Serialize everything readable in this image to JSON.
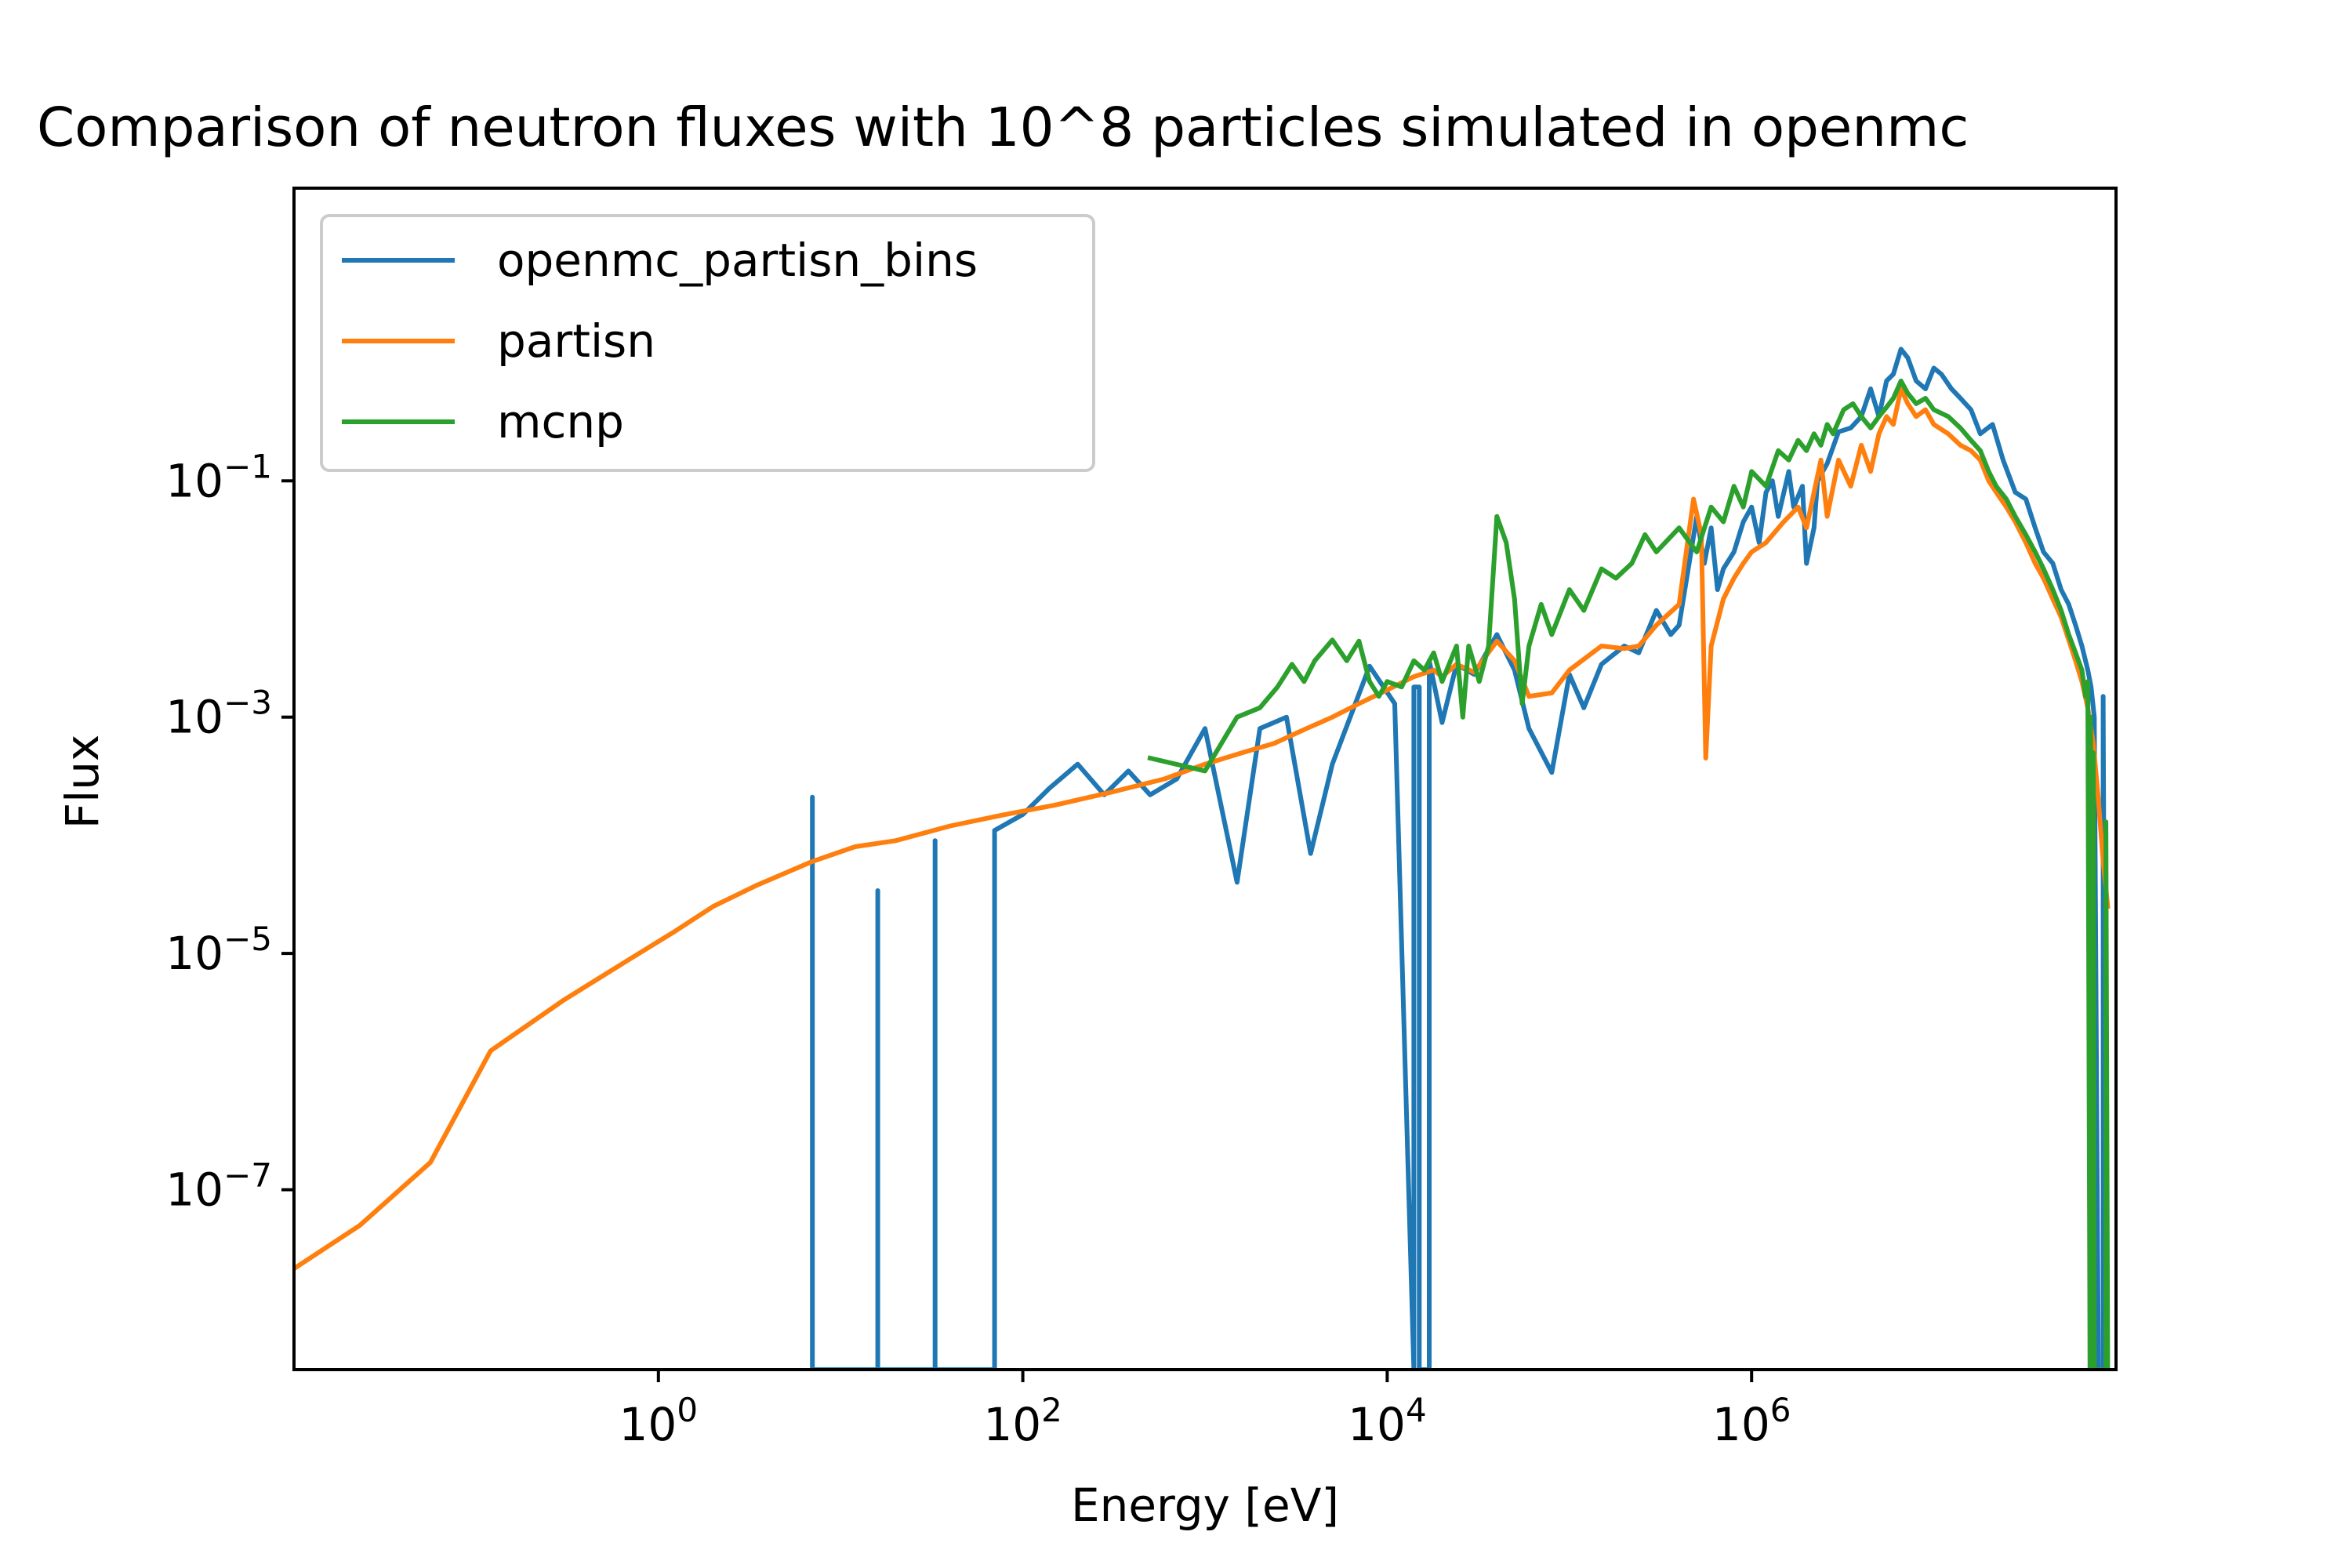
{
  "chart_data": {
    "type": "line",
    "title": "Comparison of neutron fluxes with 10^8 particles simulated in openmc",
    "xlabel": "Energy [eV]",
    "ylabel": "Flux",
    "x_scale": "log",
    "y_scale": "log",
    "xlim": [
      0.01,
      100000000
    ],
    "ylim": [
      3e-09,
      30
    ],
    "grid": false,
    "legend_position": "top-left",
    "x_ticks": [
      {
        "value": 1,
        "base": "10",
        "exp": "0"
      },
      {
        "value": 100,
        "base": "10",
        "exp": "2"
      },
      {
        "value": 10000,
        "base": "10",
        "exp": "4"
      },
      {
        "value": 1000000,
        "base": "10",
        "exp": "6"
      }
    ],
    "y_ticks": [
      {
        "value": 0.1,
        "base": "10",
        "exp": "−1"
      },
      {
        "value": 0.001,
        "base": "10",
        "exp": "−3"
      },
      {
        "value": 1e-05,
        "base": "10",
        "exp": "−5"
      },
      {
        "value": 1e-07,
        "base": "10",
        "exp": "−7"
      }
    ],
    "series": [
      {
        "name": "openmc_partisn_bins",
        "color": "#1f77b4",
        "points": [
          [
            7,
            3e-09
          ],
          [
            7,
            0.00021
          ],
          [
            7,
            3e-09
          ],
          [
            16,
            3e-09
          ],
          [
            16,
            3.4e-05
          ],
          [
            16,
            3e-09
          ],
          [
            33,
            3e-09
          ],
          [
            33,
            9e-05
          ],
          [
            33,
            3e-09
          ],
          [
            70,
            3e-09
          ],
          [
            70,
            0.00011
          ],
          [
            100,
            0.00015
          ],
          [
            140,
            0.00025
          ],
          [
            200,
            0.0004
          ],
          [
            280,
            0.00022
          ],
          [
            380,
            0.00035
          ],
          [
            500,
            0.00022
          ],
          [
            700,
            0.0003
          ],
          [
            1000,
            0.0008
          ],
          [
            1500,
            4e-05
          ],
          [
            2000,
            0.0008
          ],
          [
            2800,
            0.001
          ],
          [
            3800,
            7e-05
          ],
          [
            5000,
            0.0004
          ],
          [
            8000,
            0.0027
          ],
          [
            11000,
            0.0013
          ],
          [
            14000,
            3e-09
          ],
          [
            14000,
            0.0018
          ],
          [
            15000,
            0.0018
          ],
          [
            15000,
            3e-09
          ],
          [
            17000,
            3e-09
          ],
          [
            17000,
            0.003
          ],
          [
            20000,
            0.0009
          ],
          [
            24000,
            0.0028
          ],
          [
            30000,
            0.0023
          ],
          [
            40000,
            0.005
          ],
          [
            50000,
            0.0025
          ],
          [
            60000,
            0.0008
          ],
          [
            80000,
            0.00034
          ],
          [
            100000,
            0.0023
          ],
          [
            120000,
            0.0012
          ],
          [
            150000,
            0.0028
          ],
          [
            200000,
            0.004
          ],
          [
            240000,
            0.0035
          ],
          [
            300000,
            0.008
          ],
          [
            360000,
            0.005
          ],
          [
            400000,
            0.006
          ],
          [
            500000,
            0.05
          ],
          [
            550000,
            0.02
          ],
          [
            600000,
            0.04
          ],
          [
            650000,
            0.012
          ],
          [
            700000,
            0.018
          ],
          [
            800000,
            0.025
          ],
          [
            900000,
            0.045
          ],
          [
            1000000,
            0.06
          ],
          [
            1100000,
            0.03
          ],
          [
            1200000,
            0.08
          ],
          [
            1300000,
            0.1
          ],
          [
            1400000,
            0.05
          ],
          [
            1600000,
            0.12
          ],
          [
            1700000,
            0.06
          ],
          [
            1900000,
            0.09
          ],
          [
            2000000,
            0.02
          ],
          [
            2200000,
            0.04
          ],
          [
            2300000,
            0.1
          ],
          [
            2600000,
            0.14
          ],
          [
            3000000,
            0.26
          ],
          [
            3500000,
            0.28
          ],
          [
            4000000,
            0.35
          ],
          [
            4500000,
            0.6
          ],
          [
            5000000,
            0.35
          ],
          [
            5500000,
            0.7
          ],
          [
            6000000,
            0.8
          ],
          [
            6600000,
            1.3
          ],
          [
            7200000,
            1.1
          ],
          [
            8000000,
            0.7
          ],
          [
            9000000,
            0.6
          ],
          [
            10000000,
            0.9
          ],
          [
            11000000,
            0.8
          ],
          [
            12500000,
            0.6
          ],
          [
            14000000,
            0.5
          ],
          [
            16000000,
            0.4
          ],
          [
            18000000,
            0.25
          ],
          [
            21000000,
            0.3
          ],
          [
            24000000,
            0.15
          ],
          [
            28000000,
            0.08
          ],
          [
            32000000,
            0.07
          ],
          [
            36000000,
            0.04
          ],
          [
            40000000,
            0.025
          ],
          [
            45000000,
            0.02
          ],
          [
            50000000,
            0.012
          ],
          [
            55000000,
            0.009
          ],
          [
            60000000,
            0.006
          ],
          [
            65000000,
            0.004
          ],
          [
            70000000,
            0.0025
          ],
          [
            73000000,
            0.0018
          ],
          [
            76000000,
            0.001
          ],
          [
            80000000,
            3e-09
          ],
          [
            85000000,
            3e-09
          ],
          [
            85000000,
            0.0015
          ],
          [
            88000000,
            3e-09
          ]
        ]
      },
      {
        "name": "partisn",
        "color": "#ff7f0e",
        "points": [
          [
            0.0047,
            1e-08
          ],
          [
            0.023,
            5e-08
          ],
          [
            0.056,
            1.7e-07
          ],
          [
            0.12,
            1.5e-06
          ],
          [
            0.3,
            4e-06
          ],
          [
            0.7,
            9e-06
          ],
          [
            1.2,
            1.5e-05
          ],
          [
            2,
            2.5e-05
          ],
          [
            3.5,
            3.8e-05
          ],
          [
            7,
            6e-05
          ],
          [
            12,
            8e-05
          ],
          [
            20,
            9e-05
          ],
          [
            40,
            0.00012
          ],
          [
            80,
            0.00015
          ],
          [
            150,
            0.00018
          ],
          [
            300,
            0.00023
          ],
          [
            600,
            0.0003
          ],
          [
            1000,
            0.0004
          ],
          [
            1600,
            0.0005
          ],
          [
            2400,
            0.0006
          ],
          [
            3600,
            0.0008
          ],
          [
            5000,
            0.001
          ],
          [
            7000,
            0.0013
          ],
          [
            10000,
            0.0017
          ],
          [
            14000,
            0.0022
          ],
          [
            18000,
            0.0025
          ],
          [
            20000,
            0.0022
          ],
          [
            24000,
            0.0028
          ],
          [
            30000,
            0.0024
          ],
          [
            40000,
            0.0044
          ],
          [
            50000,
            0.003
          ],
          [
            60000,
            0.0015
          ],
          [
            80000,
            0.0016
          ],
          [
            100000,
            0.0025
          ],
          [
            150000,
            0.004
          ],
          [
            200000,
            0.0038
          ],
          [
            240000,
            0.004
          ],
          [
            300000,
            0.006
          ],
          [
            400000,
            0.009
          ],
          [
            480000,
            0.07
          ],
          [
            530000,
            0.035
          ],
          [
            560000,
            0.00045
          ],
          [
            600000,
            0.004
          ],
          [
            700000,
            0.01
          ],
          [
            800000,
            0.015
          ],
          [
            900000,
            0.02
          ],
          [
            1000000,
            0.025
          ],
          [
            1200000,
            0.03
          ],
          [
            1500000,
            0.045
          ],
          [
            1800000,
            0.06
          ],
          [
            2000000,
            0.04
          ],
          [
            2400000,
            0.15
          ],
          [
            2600000,
            0.05
          ],
          [
            3000000,
            0.15
          ],
          [
            3500000,
            0.09
          ],
          [
            4000000,
            0.2
          ],
          [
            4500000,
            0.12
          ],
          [
            5000000,
            0.25
          ],
          [
            5500000,
            0.35
          ],
          [
            6000000,
            0.3
          ],
          [
            6600000,
            0.6
          ],
          [
            7200000,
            0.45
          ],
          [
            8000000,
            0.35
          ],
          [
            9000000,
            0.4
          ],
          [
            10000000,
            0.3
          ],
          [
            12000000,
            0.25
          ],
          [
            14000000,
            0.2
          ],
          [
            16000000,
            0.18
          ],
          [
            18000000,
            0.15
          ],
          [
            20000000,
            0.1
          ],
          [
            22000000,
            0.08
          ],
          [
            25000000,
            0.06
          ],
          [
            28000000,
            0.045
          ],
          [
            32000000,
            0.03
          ],
          [
            36000000,
            0.02
          ],
          [
            40000000,
            0.015
          ],
          [
            45000000,
            0.01
          ],
          [
            50000000,
            0.007
          ],
          [
            55000000,
            0.0045
          ],
          [
            60000000,
            0.003
          ],
          [
            65000000,
            0.002
          ],
          [
            70000000,
            0.0012
          ],
          [
            75000000,
            0.0006
          ],
          [
            80000000,
            0.0002
          ],
          [
            85000000,
            6e-05
          ],
          [
            90000000,
            2.5e-05
          ]
        ]
      },
      {
        "name": "mcnp",
        "color": "#2ca02c",
        "points": [
          [
            500,
            0.00045
          ],
          [
            1000,
            0.00035
          ],
          [
            1500,
            0.001
          ],
          [
            2000,
            0.0012
          ],
          [
            2500,
            0.0018
          ],
          [
            3000,
            0.0028
          ],
          [
            3500,
            0.002
          ],
          [
            4000,
            0.003
          ],
          [
            5000,
            0.0045
          ],
          [
            6000,
            0.003
          ],
          [
            7000,
            0.0044
          ],
          [
            8000,
            0.002
          ],
          [
            9000,
            0.0015
          ],
          [
            10000,
            0.002
          ],
          [
            12000,
            0.0018
          ],
          [
            14000,
            0.003
          ],
          [
            16000,
            0.0025
          ],
          [
            18000,
            0.0035
          ],
          [
            20000,
            0.002
          ],
          [
            24000,
            0.004
          ],
          [
            26000,
            0.001
          ],
          [
            28000,
            0.004
          ],
          [
            32000,
            0.002
          ],
          [
            36000,
            0.004
          ],
          [
            40000,
            0.05
          ],
          [
            45000,
            0.03
          ],
          [
            50000,
            0.01
          ],
          [
            55000,
            0.0013
          ],
          [
            60000,
            0.004
          ],
          [
            70000,
            0.009
          ],
          [
            80000,
            0.005
          ],
          [
            100000,
            0.012
          ],
          [
            120000,
            0.008
          ],
          [
            150000,
            0.018
          ],
          [
            180000,
            0.015
          ],
          [
            220000,
            0.02
          ],
          [
            260000,
            0.035
          ],
          [
            300000,
            0.025
          ],
          [
            400000,
            0.04
          ],
          [
            500000,
            0.025
          ],
          [
            600000,
            0.06
          ],
          [
            700000,
            0.045
          ],
          [
            800000,
            0.09
          ],
          [
            900000,
            0.06
          ],
          [
            1000000,
            0.12
          ],
          [
            1200000,
            0.09
          ],
          [
            1400000,
            0.18
          ],
          [
            1600000,
            0.15
          ],
          [
            1800000,
            0.22
          ],
          [
            2000000,
            0.18
          ],
          [
            2200000,
            0.25
          ],
          [
            2400000,
            0.2
          ],
          [
            2600000,
            0.3
          ],
          [
            2800000,
            0.25
          ],
          [
            3200000,
            0.4
          ],
          [
            3600000,
            0.45
          ],
          [
            4000000,
            0.35
          ],
          [
            4500000,
            0.28
          ],
          [
            5000000,
            0.35
          ],
          [
            5500000,
            0.42
          ],
          [
            6000000,
            0.5
          ],
          [
            6600000,
            0.7
          ],
          [
            7200000,
            0.55
          ],
          [
            8000000,
            0.45
          ],
          [
            9000000,
            0.5
          ],
          [
            10000000,
            0.4
          ],
          [
            12000000,
            0.35
          ],
          [
            14000000,
            0.28
          ],
          [
            16000000,
            0.22
          ],
          [
            18000000,
            0.18
          ],
          [
            20000000,
            0.12
          ],
          [
            22000000,
            0.09
          ],
          [
            25000000,
            0.07
          ],
          [
            28000000,
            0.05
          ],
          [
            32000000,
            0.035
          ],
          [
            36000000,
            0.025
          ],
          [
            40000000,
            0.018
          ],
          [
            45000000,
            0.012
          ],
          [
            50000000,
            0.008
          ],
          [
            55000000,
            0.005
          ],
          [
            60000000,
            0.0035
          ],
          [
            65000000,
            0.0025
          ],
          [
            68000000,
            0.0015
          ],
          [
            70000000,
            0.002
          ],
          [
            72000000,
            3e-09
          ],
          [
            72500000,
            3e-09
          ],
          [
            72500000,
            0.001
          ],
          [
            74000000,
            3e-09
          ],
          [
            75000000,
            3e-09
          ],
          [
            75000000,
            0.0005
          ],
          [
            76000000,
            3e-09
          ],
          [
            88000000,
            3e-09
          ],
          [
            88000000,
            0.00013
          ],
          [
            90000000,
            3e-09
          ]
        ]
      }
    ]
  }
}
